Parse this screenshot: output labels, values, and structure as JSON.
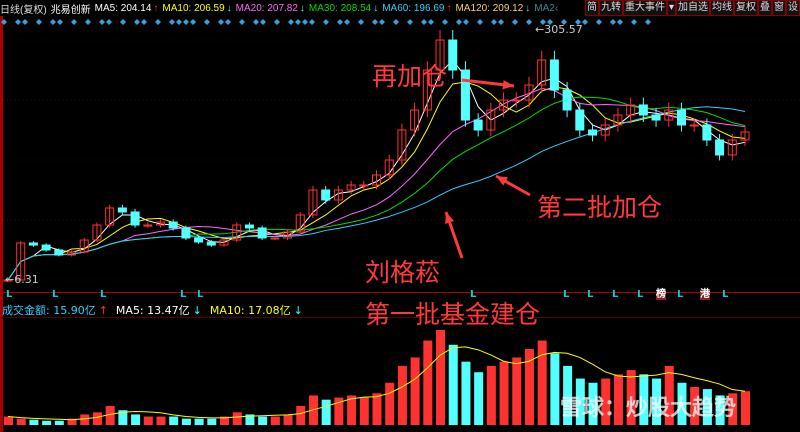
{
  "header": {
    "period": "日线(复权)",
    "stock": "兆易创新",
    "ma": [
      {
        "label": "MA5: 204.14",
        "arrow": "↑",
        "color": "#ffffff"
      },
      {
        "label": "MA10: 206.59",
        "arrow": "↓",
        "color": "#ffff00"
      },
      {
        "label": "MA20: 207.82",
        "arrow": "↓",
        "color": "#ff66ff"
      },
      {
        "label": "MA30: 208.54",
        "arrow": "↓",
        "color": "#00dd00"
      },
      {
        "label": "MA60: 196.69",
        "arrow": "↑",
        "color": "#33ccff"
      },
      {
        "label": "MA120: 209.12",
        "arrow": "↓",
        "color": "#ffcc66"
      },
      {
        "label": "MA2‹",
        "arrow": "",
        "color": "#3a8a8a"
      }
    ],
    "buttons": [
      "简",
      "九转",
      "重大事件",
      "▾",
      "加自选",
      "均线",
      "复权",
      "叠",
      "窗",
      "设"
    ]
  },
  "volume_legend": {
    "amount": "成交金额: 15.90亿",
    "amount_arrow": "↑",
    "ma5": "MA5: 13.47亿",
    "ma5_arrow": "↓",
    "ma10": "MA10: 17.08亿",
    "ma10_arrow": "↓"
  },
  "event_marks": [
    "L",
    "L",
    "L",
    "L",
    "L",
    "L",
    "L",
    "L",
    "L",
    "L",
    "L",
    "榜",
    "L",
    "港"
  ],
  "annotations": {
    "a1": "再加仓",
    "a2": "第二批加仓",
    "a3": "刘格菘",
    "a4": "第一批基金建仓"
  },
  "watermark": "雪球：炒股大趋势",
  "chart_data": {
    "type": "candlestick",
    "high_label": "305.57",
    "low_label": "6.31",
    "ylim": [
      6.31,
      305.57
    ],
    "colors": {
      "up": "#ff3232",
      "down": "#54ffff"
    },
    "closes": [
      12.2,
      55.6,
      53.2,
      47.4,
      41.5,
      45.0,
      59.1,
      76.7,
      96.7,
      92.0,
      76.7,
      76.7,
      80.2,
      73.2,
      61.5,
      56.8,
      53.2,
      59.1,
      76.7,
      73.2,
      61.5,
      61.5,
      68.5,
      88.5,
      117.8,
      106.1,
      117.8,
      123.7,
      123.7,
      135.4,
      153.0,
      188.2,
      211.7,
      258.6,
      293.8,
      258.6,
      199.9,
      188.2,
      211.7,
      223.4,
      223.4,
      241.0,
      270.4,
      235.2,
      211.7,
      188.2,
      182.3,
      194.1,
      205.8,
      217.6,
      205.8,
      199.9,
      211.7,
      194.1,
      194.1,
      176.5,
      158.9,
      176.5,
      185.9
    ],
    "volume_unit": "亿",
    "volumes": [
      4,
      3,
      2.5,
      2,
      2,
      3,
      5,
      6,
      9,
      7,
      5,
      4,
      4,
      4,
      3,
      3,
      3,
      4,
      6,
      5,
      4,
      4,
      5,
      9,
      14,
      12,
      13,
      14,
      13,
      15,
      20,
      28,
      32,
      40,
      45,
      38,
      30,
      25,
      28,
      30,
      32,
      36,
      40,
      34,
      28,
      22,
      20,
      22,
      24,
      26,
      24,
      22,
      28,
      20,
      18,
      17,
      14,
      15,
      16
    ]
  }
}
